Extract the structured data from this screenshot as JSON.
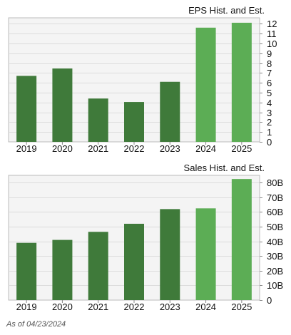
{
  "footnote": "As of 04/23/2024",
  "colors": {
    "historical": "#3f7a3a",
    "estimate": "#5cad55",
    "plot_bg": "#f4f4f4",
    "grid": "#dcdcdc",
    "border": "#bbbbbb"
  },
  "chart_data": [
    {
      "type": "bar",
      "title": "EPS Hist. and Est.",
      "categories": [
        "2019",
        "2020",
        "2021",
        "2022",
        "2023",
        "2024",
        "2025"
      ],
      "values": [
        6.7,
        7.45,
        4.4,
        4.05,
        6.1,
        11.6,
        12.1
      ],
      "estimate_flags": [
        false,
        false,
        false,
        false,
        false,
        true,
        true
      ],
      "ylim": [
        0,
        12.6
      ],
      "yticks": [
        0,
        1,
        2,
        3,
        4,
        5,
        6,
        7,
        8,
        9,
        10,
        11,
        12
      ],
      "ytick_labels": [
        "0",
        "1",
        "2",
        "3",
        "4",
        "5",
        "6",
        "7",
        "8",
        "9",
        "10",
        "11",
        "12"
      ],
      "grid": true
    },
    {
      "type": "bar",
      "title": "Sales Hist. and Est.",
      "categories": [
        "2019",
        "2020",
        "2021",
        "2022",
        "2023",
        "2024",
        "2025"
      ],
      "values": [
        39,
        41,
        46.5,
        52,
        62,
        62.5,
        82.5
      ],
      "estimate_flags": [
        false,
        false,
        false,
        false,
        false,
        true,
        true
      ],
      "ylim": [
        0,
        85
      ],
      "yticks": [
        0,
        10,
        20,
        30,
        40,
        50,
        60,
        70,
        80
      ],
      "ytick_labels": [
        "0",
        "10B",
        "20B",
        "30B",
        "40B",
        "50B",
        "60B",
        "70B",
        "80B"
      ],
      "grid": true
    }
  ]
}
